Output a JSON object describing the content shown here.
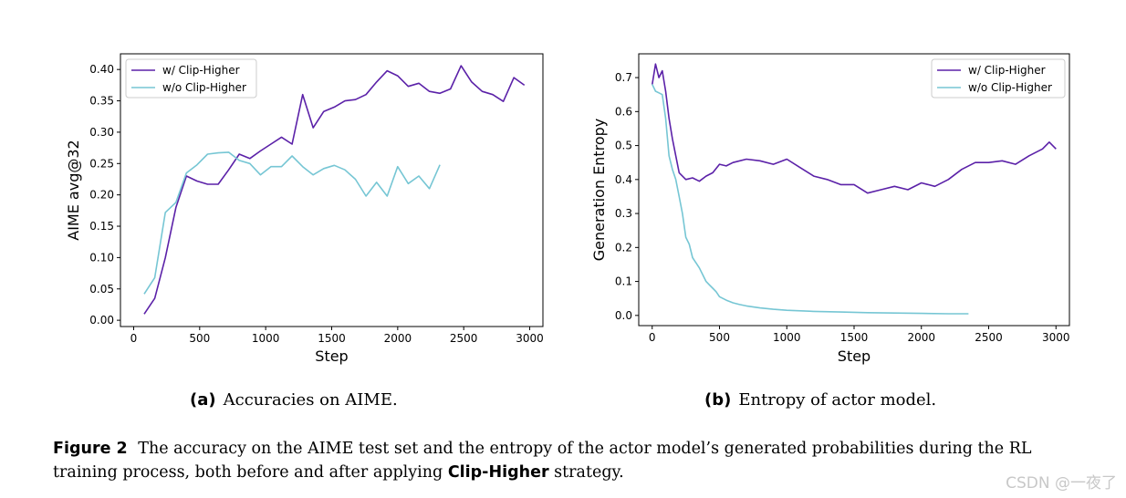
{
  "chart_data": [
    {
      "type": "line",
      "panel": "a",
      "xlabel": "Step",
      "ylabel": "AIME avg@32",
      "xlim": [
        -100,
        3100
      ],
      "ylim": [
        -0.01,
        0.425
      ],
      "xticks": [
        0,
        500,
        1000,
        1500,
        2000,
        2500,
        3000
      ],
      "xtick_labels": [
        "0",
        "500",
        "1000",
        "1500",
        "2000",
        "2500",
        "3000"
      ],
      "yticks": [
        0.0,
        0.05,
        0.1,
        0.15,
        0.2,
        0.25,
        0.3,
        0.35,
        0.4
      ],
      "ytick_labels": [
        "0.00",
        "0.05",
        "0.10",
        "0.15",
        "0.20",
        "0.25",
        "0.30",
        "0.35",
        "0.40"
      ],
      "legend_position": "top-left",
      "series": [
        {
          "name": "w/ Clip-Higher",
          "color": "#5b21a8",
          "x": [
            80,
            160,
            240,
            320,
            400,
            480,
            560,
            640,
            720,
            800,
            880,
            960,
            1040,
            1120,
            1200,
            1280,
            1360,
            1440,
            1520,
            1600,
            1680,
            1760,
            1840,
            1920,
            2000,
            2080,
            2160,
            2240,
            2320,
            2400,
            2480,
            2560,
            2640,
            2720,
            2800,
            2880,
            2960
          ],
          "y": [
            0.01,
            0.035,
            0.1,
            0.18,
            0.23,
            0.222,
            0.217,
            0.217,
            0.24,
            0.265,
            0.258,
            0.27,
            0.281,
            0.292,
            0.281,
            0.36,
            0.307,
            0.333,
            0.34,
            0.35,
            0.352,
            0.36,
            0.38,
            0.398,
            0.39,
            0.373,
            0.378,
            0.365,
            0.362,
            0.369,
            0.406,
            0.38,
            0.365,
            0.36,
            0.349,
            0.387,
            0.375
          ]
        },
        {
          "name": "w/o Clip-Higher",
          "color": "#76c6d4",
          "x": [
            80,
            160,
            240,
            320,
            400,
            480,
            560,
            640,
            720,
            800,
            880,
            960,
            1040,
            1120,
            1200,
            1280,
            1360,
            1440,
            1520,
            1600,
            1680,
            1760,
            1840,
            1920,
            2000,
            2080,
            2160,
            2240,
            2320
          ],
          "y": [
            0.042,
            0.068,
            0.172,
            0.188,
            0.235,
            0.248,
            0.265,
            0.267,
            0.268,
            0.255,
            0.25,
            0.232,
            0.245,
            0.245,
            0.262,
            0.245,
            0.232,
            0.242,
            0.247,
            0.24,
            0.225,
            0.198,
            0.22,
            0.198,
            0.245,
            0.218,
            0.23,
            0.21,
            0.248
          ]
        }
      ]
    },
    {
      "type": "line",
      "panel": "b",
      "xlabel": "Step",
      "ylabel": "Generation Entropy",
      "xlim": [
        -100,
        3100
      ],
      "ylim": [
        -0.03,
        0.77
      ],
      "xticks": [
        0,
        500,
        1000,
        1500,
        2000,
        2500,
        3000
      ],
      "xtick_labels": [
        "0",
        "500",
        "1000",
        "1500",
        "2000",
        "2500",
        "3000"
      ],
      "yticks": [
        0.0,
        0.1,
        0.2,
        0.3,
        0.4,
        0.5,
        0.6,
        0.7
      ],
      "ytick_labels": [
        "0.0",
        "0.1",
        "0.2",
        "0.3",
        "0.4",
        "0.5",
        "0.6",
        "0.7"
      ],
      "legend_position": "top-right",
      "series": [
        {
          "name": "w/ Clip-Higher",
          "color": "#5b21a8",
          "x": [
            0,
            25,
            50,
            75,
            100,
            125,
            150,
            175,
            200,
            225,
            250,
            300,
            350,
            400,
            450,
            500,
            550,
            600,
            700,
            800,
            900,
            1000,
            1100,
            1200,
            1300,
            1400,
            1500,
            1600,
            1700,
            1800,
            1900,
            2000,
            2100,
            2200,
            2300,
            2400,
            2500,
            2600,
            2700,
            2800,
            2900,
            2950,
            3000
          ],
          "y": [
            0.68,
            0.74,
            0.7,
            0.72,
            0.66,
            0.58,
            0.52,
            0.47,
            0.42,
            0.41,
            0.4,
            0.405,
            0.395,
            0.41,
            0.42,
            0.445,
            0.44,
            0.45,
            0.46,
            0.455,
            0.445,
            0.46,
            0.435,
            0.41,
            0.4,
            0.385,
            0.385,
            0.36,
            0.37,
            0.38,
            0.37,
            0.39,
            0.38,
            0.4,
            0.43,
            0.45,
            0.45,
            0.455,
            0.445,
            0.47,
            0.49,
            0.51,
            0.49
          ]
        },
        {
          "name": "w/o Clip-Higher",
          "color": "#76c6d4",
          "x": [
            0,
            25,
            50,
            75,
            100,
            125,
            150,
            175,
            200,
            225,
            250,
            275,
            300,
            325,
            350,
            375,
            400,
            425,
            450,
            475,
            500,
            550,
            600,
            650,
            700,
            800,
            900,
            1000,
            1200,
            1400,
            1600,
            1800,
            2000,
            2200,
            2350
          ],
          "y": [
            0.68,
            0.66,
            0.655,
            0.65,
            0.58,
            0.47,
            0.43,
            0.4,
            0.35,
            0.3,
            0.23,
            0.21,
            0.17,
            0.155,
            0.14,
            0.12,
            0.1,
            0.09,
            0.08,
            0.07,
            0.055,
            0.045,
            0.037,
            0.032,
            0.028,
            0.022,
            0.018,
            0.015,
            0.012,
            0.01,
            0.008,
            0.007,
            0.006,
            0.005,
            0.005
          ]
        }
      ]
    }
  ],
  "captions": {
    "a_tag": "(a)",
    "a_text": "Accuracies on AIME.",
    "b_tag": "(b)",
    "b_text": "Entropy of actor model.",
    "figure_label": "Figure 2",
    "figure_text_1": "The accuracy on the AIME test set and the entropy of the actor model’s generated probabilities during the RL training process, both before and after applying",
    "figure_strategy": "Clip-Higher",
    "figure_text_2": "strategy."
  },
  "watermark": "CSDN @一夜了"
}
